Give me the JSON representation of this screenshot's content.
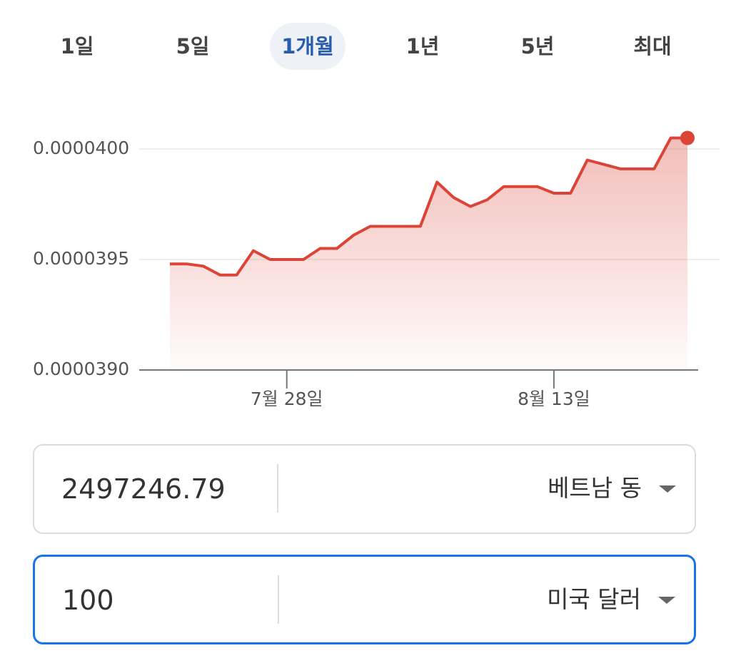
{
  "tabs": [
    "1일",
    "5일",
    "1개월",
    "1년",
    "5년",
    "최대"
  ],
  "chart_data": {
    "type": "line",
    "color": "#db4437",
    "categories": [
      null,
      null,
      null,
      null,
      null,
      null,
      null,
      "7월 28일",
      null,
      null,
      null,
      null,
      null,
      null,
      null,
      null,
      null,
      null,
      null,
      null,
      null,
      null,
      null,
      "8월 13일",
      null,
      null,
      null,
      null,
      null,
      null,
      null,
      null
    ],
    "values": [
      3.948e-05,
      3.948e-05,
      3.947e-05,
      3.943e-05,
      3.943e-05,
      3.954e-05,
      3.95e-05,
      3.95e-05,
      3.95e-05,
      3.955e-05,
      3.955e-05,
      3.961e-05,
      3.965e-05,
      3.965e-05,
      3.965e-05,
      3.965e-05,
      3.985e-05,
      3.978e-05,
      3.974e-05,
      3.977e-05,
      3.983e-05,
      3.983e-05,
      3.983e-05,
      3.98e-05,
      3.98e-05,
      3.995e-05,
      3.993e-05,
      3.991e-05,
      3.991e-05,
      3.991e-05,
      4.005e-05,
      4.005e-05
    ],
    "ylim": [
      3.9e-05,
      4.01e-05
    ],
    "yticks": [
      {
        "value": 3.9e-05,
        "label": "0.0000390"
      },
      {
        "value": 3.95e-05,
        "label": "0.0000395"
      },
      {
        "value": 4e-05,
        "label": "0.0000400"
      }
    ],
    "grid": true
  },
  "converter": [
    {
      "amount": "2497246.79",
      "currency": "베트남 동"
    },
    {
      "amount": "100",
      "currency": "미국 달러"
    }
  ]
}
